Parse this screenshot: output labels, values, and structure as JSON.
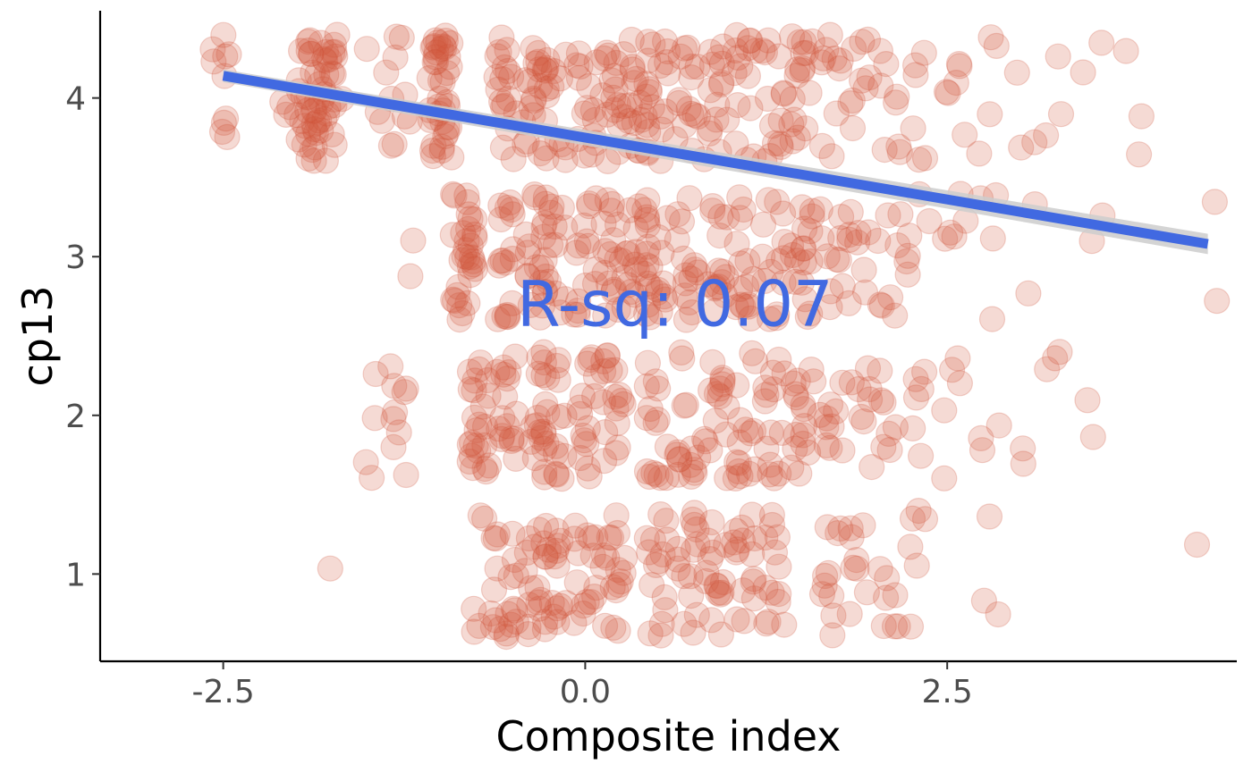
{
  "chart_data": {
    "type": "scatter",
    "title": "",
    "xlabel": "Composite index",
    "ylabel": "cp13",
    "xlim": [
      -3.35,
      4.5
    ],
    "ylim": [
      0.45,
      4.55
    ],
    "x_ticks": [
      -2.5,
      0.0,
      2.5
    ],
    "x_tick_labels": [
      "-2.5",
      "0.0",
      "2.5"
    ],
    "y_ticks": [
      1,
      2,
      3,
      4
    ],
    "y_tick_labels": [
      "1",
      "2",
      "3",
      "4"
    ],
    "grid": false,
    "legend": "none",
    "colors": {
      "points": "#d1553a",
      "fit_line": "#4169e1",
      "confidence_band": "#cccccc",
      "annotation": "#4169e1"
    },
    "annotation": {
      "text": "R-sq: 0.07",
      "x": 0.62,
      "y": 2.7
    },
    "regression_line": {
      "x": [
        -2.5,
        4.3
      ],
      "y": [
        4.14,
        3.08
      ],
      "band_halfwidth": 0.04
    },
    "columns": [
      {
        "x": -2.52,
        "levels": [
          4
        ],
        "n": 10
      },
      {
        "x": -2.03,
        "levels": [
          4
        ],
        "n": 6
      },
      {
        "x": -1.9,
        "levels": [
          4
        ],
        "n": 30
      },
      {
        "x": -1.76,
        "levels": [
          4
        ],
        "n": 26
      },
      {
        "x": -1.7,
        "levels": [
          1
        ],
        "n": 1
      },
      {
        "x": -1.45,
        "levels": [
          4,
          2
        ],
        "n": 8
      },
      {
        "x": -1.28,
        "levels": [
          4,
          2
        ],
        "n": 18
      },
      {
        "x": -1.22,
        "levels": [
          3
        ],
        "n": 2
      },
      {
        "x": -1.0,
        "levels": [
          4
        ],
        "n": 40
      },
      {
        "x": -0.84,
        "levels": [
          3
        ],
        "n": 32
      },
      {
        "x": -0.72,
        "levels": [
          2
        ],
        "n": 24
      },
      {
        "x": -0.7,
        "levels": [
          1
        ],
        "n": 8
      },
      {
        "x": -0.55,
        "levels": [
          4,
          3,
          2,
          1
        ],
        "n": 70
      },
      {
        "x": -0.35,
        "levels": [
          4,
          3,
          2,
          1
        ],
        "n": 70
      },
      {
        "x": -0.2,
        "levels": [
          4,
          3,
          2,
          1
        ],
        "n": 60
      },
      {
        "x": 0.0,
        "levels": [
          4,
          3,
          2,
          1
        ],
        "n": 60
      },
      {
        "x": 0.2,
        "levels": [
          4,
          3,
          2,
          1
        ],
        "n": 70
      },
      {
        "x": 0.36,
        "levels": [
          3,
          4
        ],
        "n": 40
      },
      {
        "x": 0.5,
        "levels": [
          4,
          3,
          2,
          1
        ],
        "n": 60
      },
      {
        "x": 0.7,
        "levels": [
          4,
          3,
          2,
          1
        ],
        "n": 60
      },
      {
        "x": 0.9,
        "levels": [
          4,
          3,
          2,
          1
        ],
        "n": 60
      },
      {
        "x": 1.1,
        "levels": [
          4,
          3,
          2,
          1
        ],
        "n": 60
      },
      {
        "x": 1.3,
        "levels": [
          4,
          3,
          2,
          1
        ],
        "n": 55
      },
      {
        "x": 1.5,
        "levels": [
          4,
          3,
          2
        ],
        "n": 50
      },
      {
        "x": 1.7,
        "levels": [
          4,
          3,
          2,
          1
        ],
        "n": 40
      },
      {
        "x": 1.9,
        "levels": [
          4,
          3,
          2,
          1
        ],
        "n": 34
      },
      {
        "x": 2.1,
        "levels": [
          4,
          3,
          2,
          1
        ],
        "n": 30
      },
      {
        "x": 2.3,
        "levels": [
          4,
          3,
          2,
          1
        ],
        "n": 24
      },
      {
        "x": 2.55,
        "levels": [
          4,
          3,
          2
        ],
        "n": 16
      },
      {
        "x": 2.8,
        "levels": [
          4,
          3,
          2,
          1
        ],
        "n": 14
      },
      {
        "x": 3.05,
        "levels": [
          4,
          3,
          2
        ],
        "n": 7
      },
      {
        "x": 3.25,
        "levels": [
          4,
          2
        ],
        "n": 6
      },
      {
        "x": 3.5,
        "levels": [
          4,
          3,
          2
        ],
        "n": 6
      },
      {
        "x": 3.8,
        "levels": [
          4
        ],
        "n": 3
      },
      {
        "x": 4.3,
        "levels": [
          3,
          1
        ],
        "n": 3
      }
    ]
  }
}
